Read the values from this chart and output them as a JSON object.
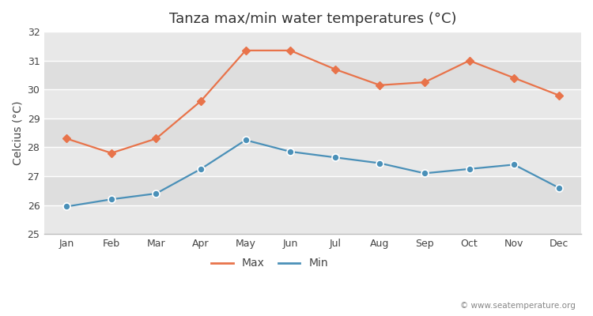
{
  "title": "Tanza max/min water temperatures (°C)",
  "ylabel": "Celcius (°C)",
  "months": [
    "Jan",
    "Feb",
    "Mar",
    "Apr",
    "May",
    "Jun",
    "Jul",
    "Aug",
    "Sep",
    "Oct",
    "Nov",
    "Dec"
  ],
  "max_temps": [
    28.3,
    27.8,
    28.3,
    29.6,
    31.35,
    31.35,
    30.7,
    30.15,
    30.25,
    31.0,
    30.4,
    29.8
  ],
  "min_temps": [
    25.95,
    26.2,
    26.4,
    27.25,
    28.25,
    27.85,
    27.65,
    27.45,
    27.1,
    27.25,
    27.4,
    26.6
  ],
  "max_color": "#e8734a",
  "min_color": "#4a90b8",
  "bg_color": "#ffffff",
  "plot_bg_color": "#e8e8e8",
  "band_color_light": "#ebebeb",
  "band_color_dark": "#dddddd",
  "ylim": [
    25,
    32
  ],
  "yticks": [
    25,
    26,
    27,
    28,
    29,
    30,
    31,
    32
  ],
  "watermark": "© www.seatemperature.org",
  "title_fontsize": 13,
  "label_fontsize": 10,
  "tick_fontsize": 9,
  "legend_fontsize": 10
}
